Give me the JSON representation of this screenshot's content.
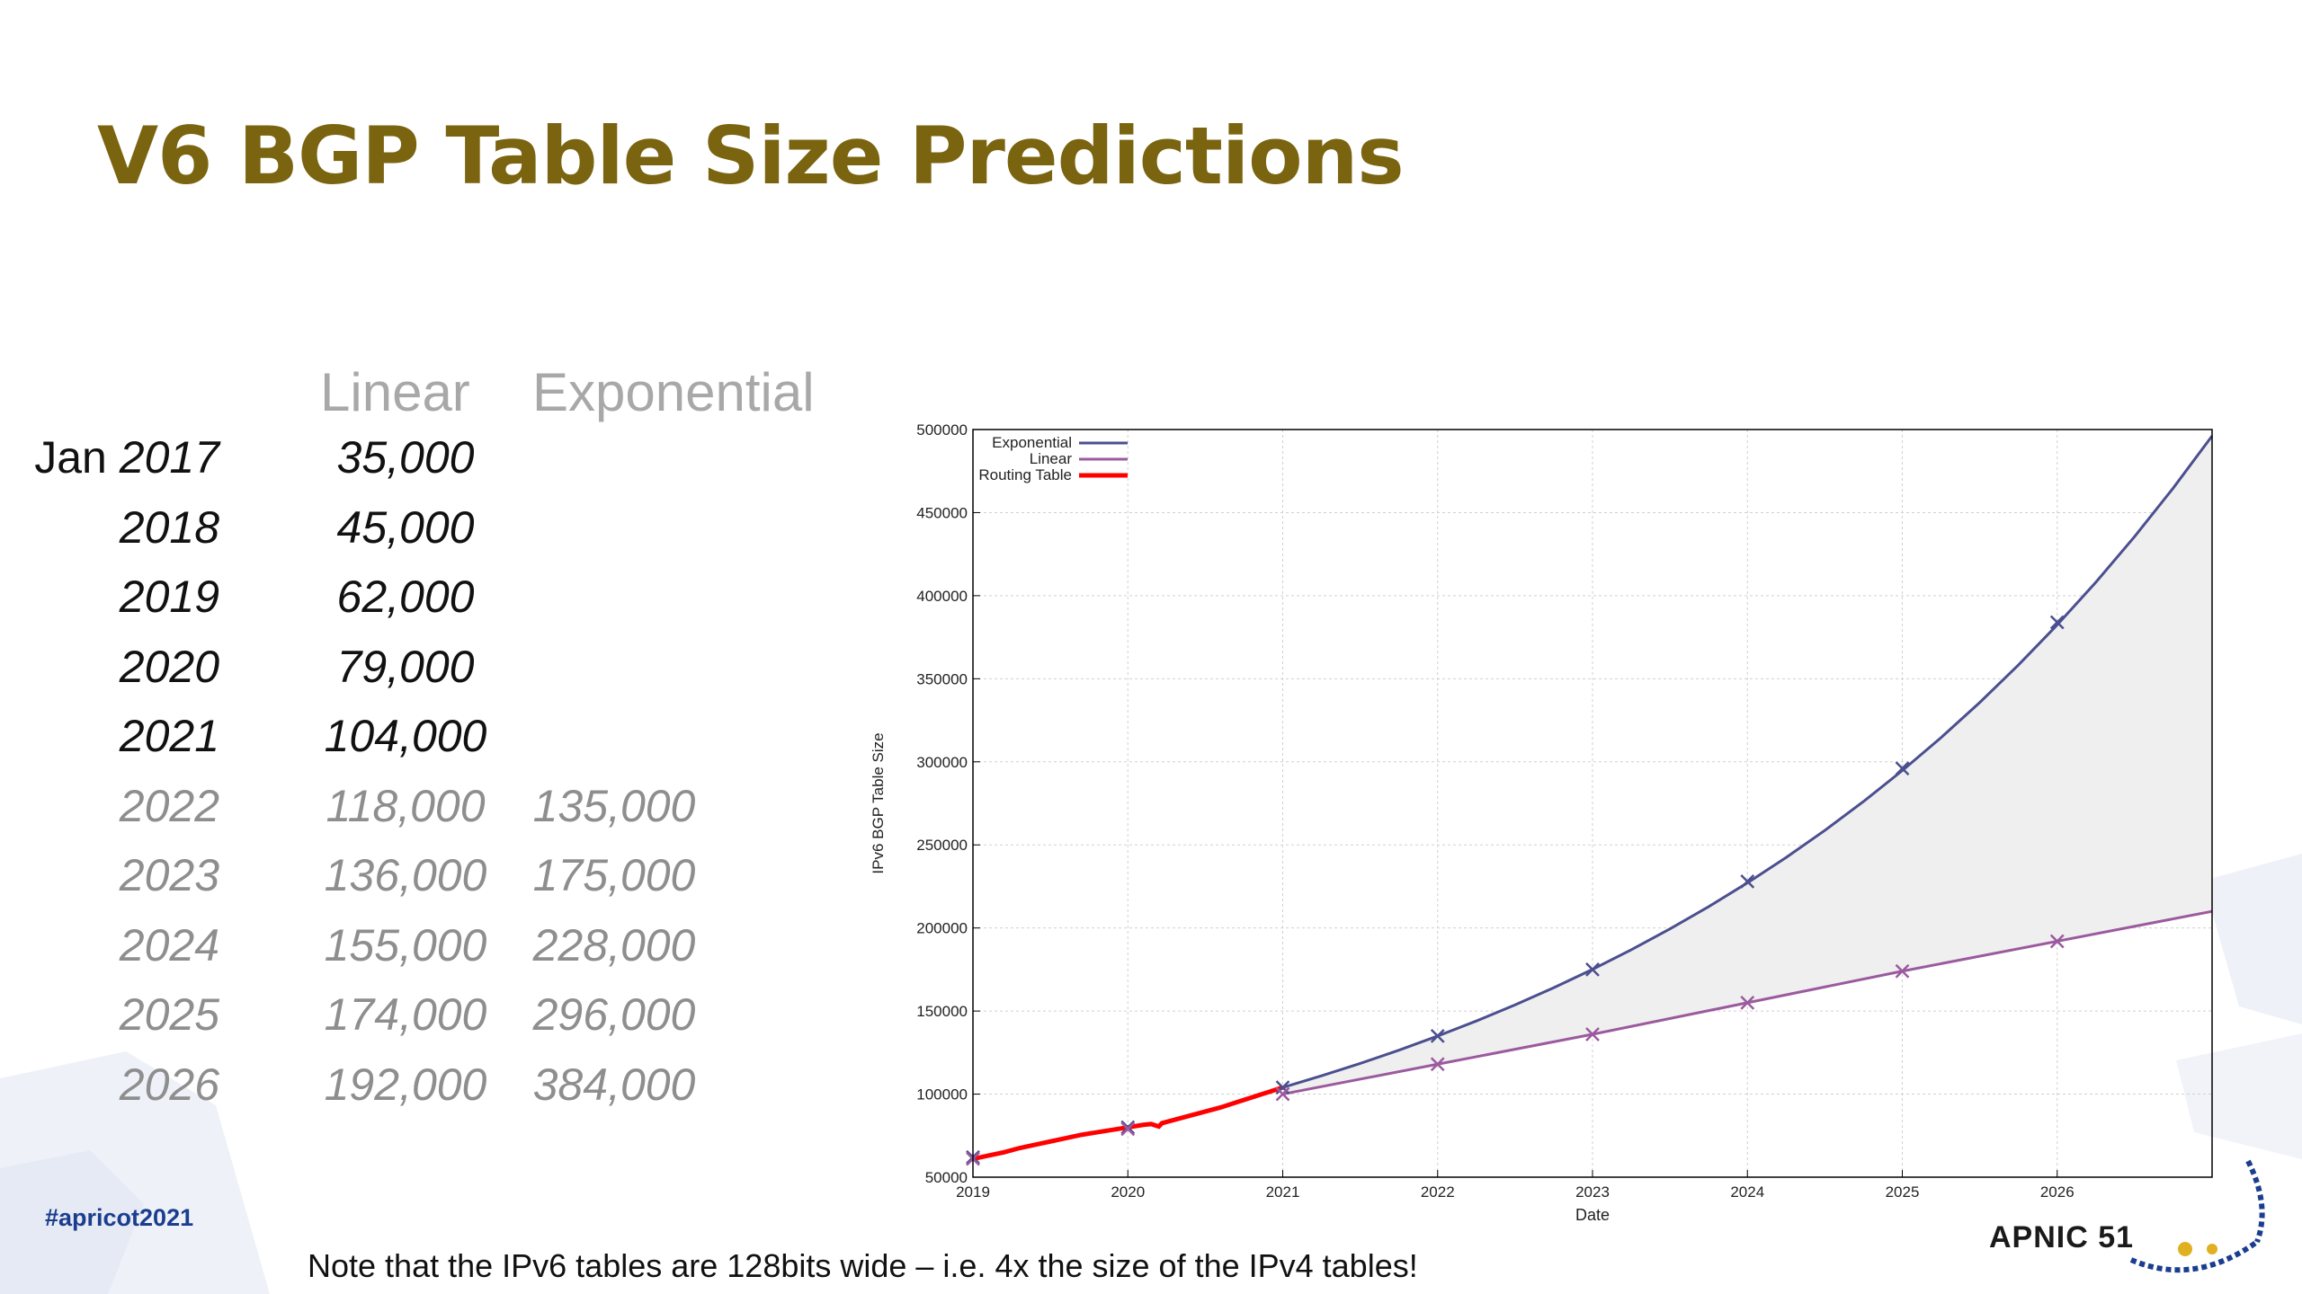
{
  "slide": {
    "title": "V6 BGP Table Size Predictions",
    "hashtag": "#apricot2021",
    "footnote": "Note that the IPv6 tables are 128bits wide – i.e. 4x the size of the IPv4 tables!",
    "logo_text": "APNIC 51"
  },
  "colors": {
    "title": "#7a6410",
    "exponential": "#4b4f8f",
    "linear": "#9b5a9e",
    "routing_table": "#ff0000",
    "hashtag": "#1a3d8f"
  },
  "table": {
    "headers": {
      "linear": "Linear",
      "exponential": "Exponential"
    },
    "rows": [
      {
        "prefix": "Jan ",
        "year": "2017",
        "linear": "35,000",
        "exponential": "",
        "kind": "hist"
      },
      {
        "prefix": "",
        "year": "2018",
        "linear": "45,000",
        "exponential": "",
        "kind": "hist"
      },
      {
        "prefix": "",
        "year": "2019",
        "linear": "62,000",
        "exponential": "",
        "kind": "hist"
      },
      {
        "prefix": "",
        "year": "2020",
        "linear": "79,000",
        "exponential": "",
        "kind": "hist"
      },
      {
        "prefix": "",
        "year": "2021",
        "linear": "104,000",
        "exponential": "",
        "kind": "hist"
      },
      {
        "prefix": "",
        "year": "2022",
        "linear": "118,000",
        "exponential": "135,000",
        "kind": "pred"
      },
      {
        "prefix": "",
        "year": "2023",
        "linear": "136,000",
        "exponential": "175,000",
        "kind": "pred"
      },
      {
        "prefix": "",
        "year": "2024",
        "linear": "155,000",
        "exponential": "228,000",
        "kind": "pred"
      },
      {
        "prefix": "",
        "year": "2025",
        "linear": "174,000",
        "exponential": "296,000",
        "kind": "pred"
      },
      {
        "prefix": "",
        "year": "2026",
        "linear": "192,000",
        "exponential": "384,000",
        "kind": "pred"
      }
    ]
  },
  "chart_data": {
    "type": "line",
    "title": "",
    "xlabel": "Date",
    "ylabel": "IPv6 BGP Table Size",
    "xlim": [
      2019,
      2027
    ],
    "ylim": [
      50000,
      500000
    ],
    "xticks": [
      2019,
      2020,
      2021,
      2022,
      2023,
      2024,
      2025,
      2026
    ],
    "xtick_labels": [
      "2019",
      "2020",
      "2021",
      "2022",
      "2023",
      "2024",
      "2025",
      "2026"
    ],
    "yticks": [
      50000,
      100000,
      150000,
      200000,
      250000,
      300000,
      350000,
      400000,
      450000,
      500000
    ],
    "ytick_labels": [
      "50000",
      "100000",
      "150000",
      "200000",
      "250000",
      "300000",
      "350000",
      "400000",
      "450000",
      "500000"
    ],
    "grid": true,
    "legend_position": "top-left",
    "shaded_region_between": [
      "Exponential",
      "Linear"
    ],
    "series": [
      {
        "name": "Exponential",
        "color": "#4b4f8f",
        "marker_x": [
          2019,
          2020,
          2021,
          2022,
          2023,
          2024,
          2025,
          2026
        ],
        "marker_y": [
          62000,
          80000,
          104000,
          135000,
          175000,
          228000,
          296000,
          384000
        ],
        "x": [
          2021,
          2021.25,
          2021.5,
          2021.75,
          2022,
          2022.25,
          2022.5,
          2022.75,
          2023,
          2023.25,
          2023.5,
          2023.75,
          2024,
          2024.25,
          2024.5,
          2024.75,
          2025,
          2025.25,
          2025.5,
          2025.75,
          2026,
          2026.25,
          2026.5,
          2026.75,
          2027
        ],
        "y": [
          104000,
          110996,
          118462,
          126431,
          134936,
          144013,
          153701,
          164041,
          175076,
          186854,
          199424,
          212839,
          227157,
          242439,
          258748,
          276154,
          294732,
          314559,
          335720,
          358305,
          382409,
          408134,
          435590,
          464893,
          496167
        ]
      },
      {
        "name": "Linear",
        "color": "#9b5a9e",
        "marker_x": [
          2019,
          2020,
          2021,
          2022,
          2023,
          2024,
          2025,
          2026
        ],
        "marker_y": [
          61000,
          79000,
          100000,
          118000,
          136000,
          155000,
          174000,
          192000
        ],
        "x": [
          2021,
          2022,
          2023,
          2024,
          2025,
          2026,
          2027
        ],
        "y": [
          100000,
          118000,
          136000,
          155000,
          174000,
          192000,
          210000
        ]
      },
      {
        "name": "Routing Table",
        "color": "#ff0000",
        "x": [
          2019,
          2019.1,
          2019.2,
          2019.3,
          2019.4,
          2019.5,
          2019.6,
          2019.7,
          2019.8,
          2019.9,
          2020,
          2020.1,
          2020.15,
          2020.2,
          2020.22,
          2020.3,
          2020.4,
          2020.5,
          2020.6,
          2020.7,
          2020.8,
          2020.9,
          2021
        ],
        "y": [
          61000,
          63000,
          65000,
          67500,
          69500,
          71500,
          73500,
          75500,
          77000,
          78500,
          80000,
          81500,
          82000,
          80500,
          82500,
          84500,
          87000,
          89500,
          92000,
          95000,
          98000,
          101000,
          104000
        ]
      }
    ]
  }
}
